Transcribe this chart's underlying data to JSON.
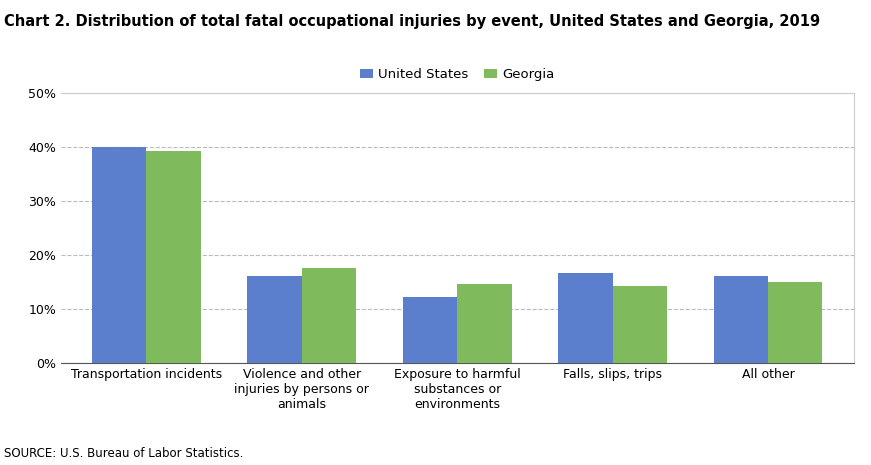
{
  "title": "Chart 2. Distribution of total fatal occupational injuries by event, United States and Georgia, 2019",
  "categories": [
    "Transportation incidents",
    "Violence and other\ninjuries by persons or\nanimals",
    "Exposure to harmful\nsubstances or\nenvironments",
    "Falls, slips, trips",
    "All other"
  ],
  "us_values": [
    39.9,
    16.0,
    12.2,
    16.7,
    16.1
  ],
  "ga_values": [
    39.3,
    17.5,
    14.6,
    14.2,
    15.0
  ],
  "us_color": "#5b7fcc",
  "ga_color": "#7fba5c",
  "us_label": "United States",
  "ga_label": "Georgia",
  "ylim": [
    0,
    50
  ],
  "yticks": [
    0,
    10,
    20,
    30,
    40,
    50
  ],
  "ytick_labels": [
    "0%",
    "10%",
    "20%",
    "30%",
    "40%",
    "50%"
  ],
  "source": "SOURCE: U.S. Bureau of Labor Statistics.",
  "bar_width": 0.35,
  "title_fontsize": 10.5,
  "legend_fontsize": 9.5,
  "tick_fontsize": 9,
  "source_fontsize": 8.5
}
